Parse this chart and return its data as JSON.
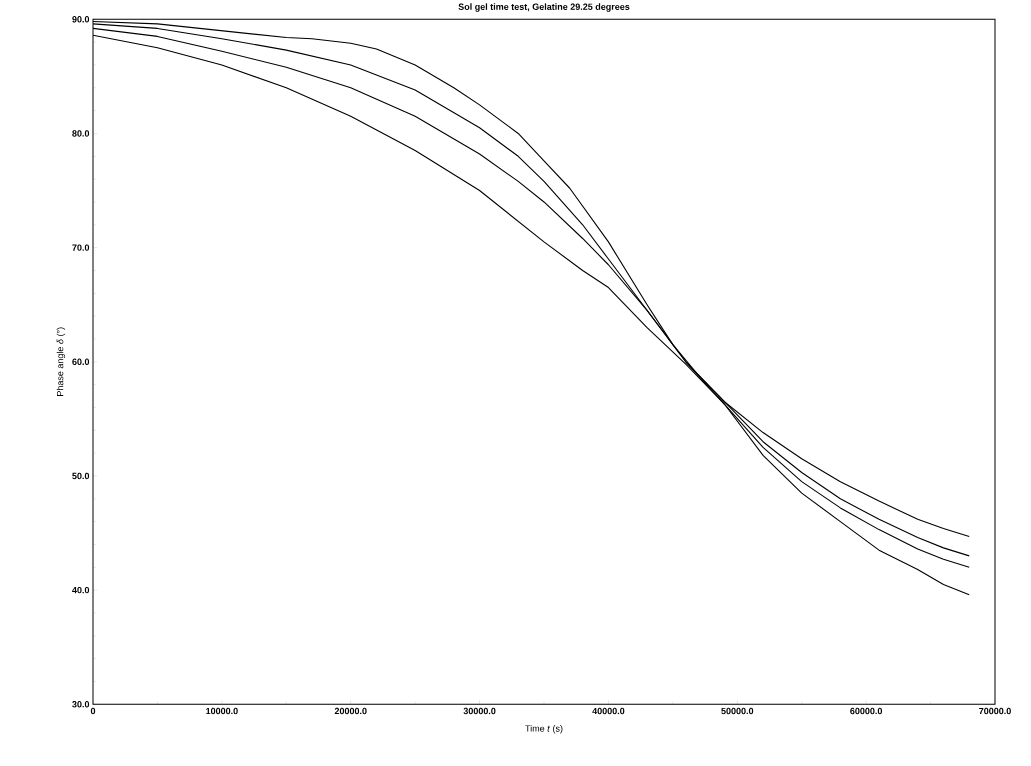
{
  "chart_data": {
    "type": "line",
    "title": "Sol gel time test, Gelatine 29.25 degrees",
    "xlabel": "Time *t* (s)",
    "ylabel": "Phase angle *δ* (°)",
    "xlim": [
      0,
      70000
    ],
    "ylim": [
      30,
      90
    ],
    "xticks": [
      0,
      {
        "value": 10000,
        "label": "10000.0"
      },
      {
        "value": 20000,
        "label": "20000.0"
      },
      {
        "value": 30000,
        "label": "30000.0"
      },
      {
        "value": 40000,
        "label": "40000.0"
      },
      {
        "value": 50000,
        "label": "50000.0"
      },
      {
        "value": 60000,
        "label": "60000.0"
      },
      {
        "value": 70000,
        "label": "70000.0"
      }
    ],
    "yticks": [
      {
        "value": 30,
        "label": "30.0"
      },
      {
        "value": 40,
        "label": "40.0"
      },
      {
        "value": 50,
        "label": "50.0"
      },
      {
        "value": 60,
        "label": "60.0"
      },
      {
        "value": 70,
        "label": "70.0"
      },
      {
        "value": 80,
        "label": "80.0"
      },
      {
        "value": 90,
        "label": "90.0"
      }
    ],
    "grid": false,
    "marker": "none",
    "line_style": "solid",
    "series": [
      {
        "color": "#000000",
        "x": [
          0,
          5000,
          10000,
          15000,
          17000,
          20000,
          22000,
          25000,
          28000,
          30000,
          33000,
          35000,
          37000,
          40000,
          43000,
          45000,
          47000,
          49000,
          52000,
          55000,
          58000,
          61000,
          64000,
          66000,
          68000
        ],
        "values": [
          89.8,
          89.6,
          89.0,
          88.4,
          88.3,
          87.9,
          87.4,
          86.0,
          84.0,
          82.5,
          80.0,
          77.6,
          75.2,
          70.5,
          65.0,
          61.5,
          58.8,
          56.5,
          53.8,
          51.5,
          49.5,
          47.8,
          46.2,
          45.4,
          44.7
        ]
      },
      {
        "color": "#000000",
        "x": [
          0,
          5000,
          10000,
          15000,
          20000,
          25000,
          30000,
          33000,
          35000,
          38000,
          40000,
          43000,
          46000,
          49000,
          52000,
          55000,
          58000,
          61000,
          64000,
          66000,
          68000
        ],
        "values": [
          89.6,
          89.2,
          88.3,
          87.3,
          86.0,
          83.8,
          80.5,
          78.0,
          75.8,
          72.0,
          69.0,
          64.5,
          60.0,
          56.5,
          53.0,
          50.3,
          48.0,
          46.2,
          44.6,
          43.7,
          43.0
        ]
      },
      {
        "color": "#000000",
        "x": [
          0,
          5000,
          10000,
          15000,
          20000,
          25000,
          30000,
          33000,
          35000,
          38000,
          40000,
          43000,
          46000,
          49000,
          52000,
          55000,
          58000,
          61000,
          64000,
          66000,
          68000
        ],
        "values": [
          89.2,
          88.5,
          87.2,
          85.8,
          84.0,
          81.5,
          78.2,
          75.8,
          74.0,
          70.8,
          68.5,
          64.5,
          60.0,
          56.3,
          52.5,
          49.5,
          47.2,
          45.3,
          43.6,
          42.7,
          42.0
        ]
      },
      {
        "color": "#000000",
        "x": [
          0,
          5000,
          10000,
          15000,
          20000,
          25000,
          30000,
          35000,
          38000,
          40000,
          43000,
          46000,
          49000,
          52000,
          55000,
          58000,
          61000,
          64000,
          66000,
          68000
        ],
        "values": [
          88.6,
          87.5,
          86.0,
          84.0,
          81.5,
          78.5,
          75.0,
          70.5,
          68.0,
          66.5,
          63.0,
          59.8,
          56.3,
          51.8,
          48.5,
          46.0,
          43.5,
          41.8,
          40.5,
          39.6
        ]
      }
    ]
  }
}
